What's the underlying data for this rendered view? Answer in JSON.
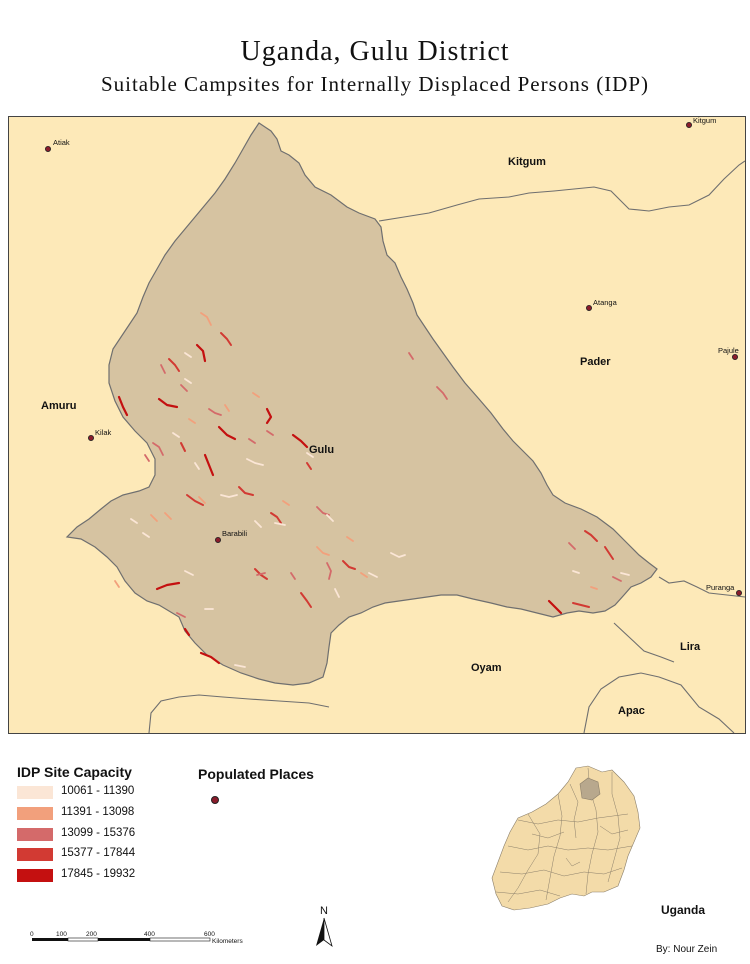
{
  "title": "Uganda, Gulu District",
  "subtitle": "Suitable Campsites for Internally Displaced Persons (IDP)",
  "colors": {
    "background": "#fde9b8",
    "district": "#d6c3a1",
    "border": "#6f6f6f",
    "place_dot": "#8a1c2b",
    "inset_fill": "#f3dba9",
    "inset_highlight": "#b8a88d"
  },
  "districts": {
    "kitgum": "Kitgum",
    "pader": "Pader",
    "amuru": "Amuru",
    "gulu": "Gulu",
    "oyam": "Oyam",
    "lira": "Lira",
    "apac": "Apac"
  },
  "places": {
    "atiak": "Atiak",
    "kitgum_town": "Kitgum",
    "atanga": "Atanga",
    "pajule": "Pajule",
    "kilak": "Kilak",
    "barabili": "Barabili",
    "puranga": "Puranga"
  },
  "legend": {
    "title": "IDP Site Capacity",
    "classes": [
      {
        "label": "10061 - 11390",
        "color": "#fbe6d6"
      },
      {
        "label": "11391 - 13098",
        "color": "#f2a07c"
      },
      {
        "label": "13099 - 15376",
        "color": "#d46a6a"
      },
      {
        "label": "15377 - 17844",
        "color": "#d23a33"
      },
      {
        "label": "17845 - 19932",
        "color": "#c41010"
      }
    ]
  },
  "populated_places_label": "Populated Places",
  "inset_label": "Uganda",
  "scale": {
    "ticks": [
      "0",
      "100",
      "200",
      "400",
      "600"
    ],
    "unit": "Kilometers"
  },
  "north_label": "N",
  "credit": "By: Nour Zein"
}
